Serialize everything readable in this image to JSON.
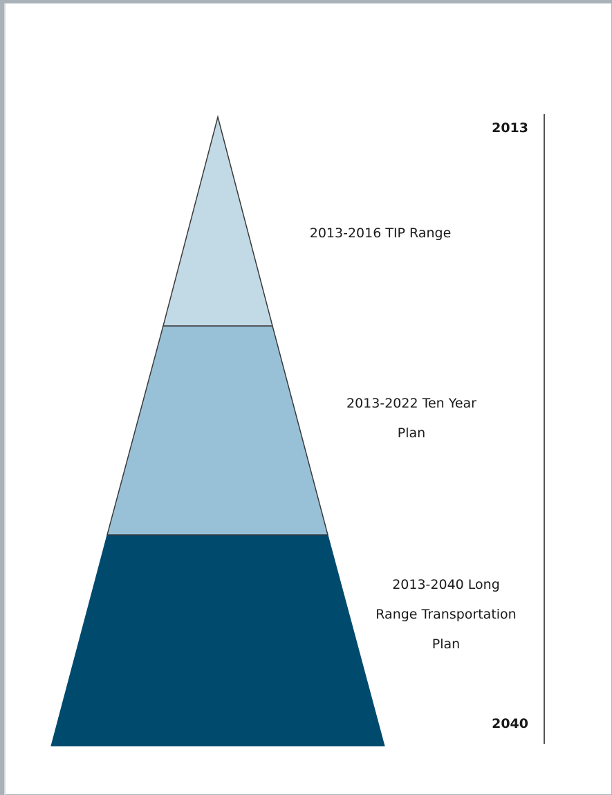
{
  "diagram": {
    "tiers": [
      {
        "label_lines": [
          "2013-2016 TIP Range"
        ],
        "color": "#c2d9e6"
      },
      {
        "label_lines": [
          "2013-2022 Ten Year",
          "Plan"
        ],
        "color": "#98c1d8"
      },
      {
        "label_lines": [
          "2013-2040 Long",
          "Range Transportation",
          "Plan"
        ],
        "color": "#004a6e"
      }
    ],
    "timeline": {
      "start_label": "2013",
      "end_label": "2040"
    },
    "colors": {
      "outline": "#3a3a3a",
      "frame": "#a9b1b9"
    }
  }
}
